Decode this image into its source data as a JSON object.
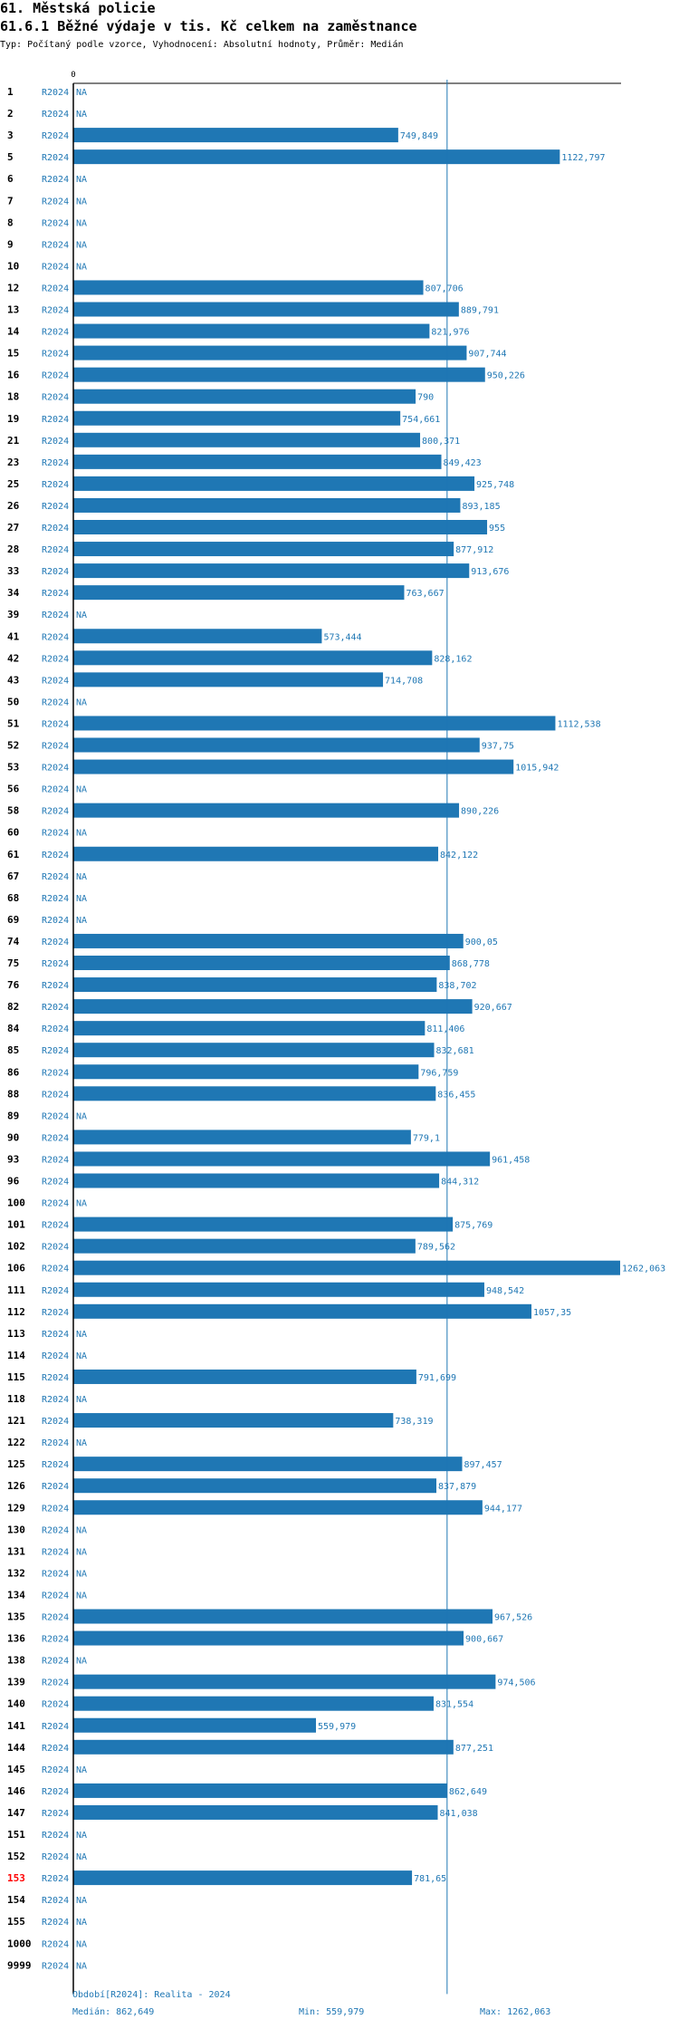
{
  "header": {
    "title": "61. Městská policie",
    "subtitle": "61.6.1 Běžné výdaje v tis. Kč celkem na zaměstnance",
    "meta": "Typ: Počítaný podle vzorce, Vyhodnocení: Absolutní hodnoty, Průměr: Medián"
  },
  "footer": {
    "period": "Období[R2024]: Realita - 2024",
    "median": "Medián: 862,649",
    "min": "Min: 559,979",
    "max": "Max: 1262,063"
  },
  "colors": {
    "bar": "#1f77b4",
    "label": "#1f77b4",
    "highlight": "#ff0000",
    "axis": "#000000"
  },
  "chart_data": {
    "type": "bar",
    "orientation": "horizontal",
    "axis_zero_label": "0",
    "xlim": [
      0,
      1262.063
    ],
    "median": 862.649,
    "series_label": "R2024",
    "rows": [
      {
        "id": "1",
        "value": null,
        "label": "NA"
      },
      {
        "id": "2",
        "value": null,
        "label": "NA"
      },
      {
        "id": "3",
        "value": 749.849,
        "label": "749,849"
      },
      {
        "id": "5",
        "value": 1122.797,
        "label": "1122,797"
      },
      {
        "id": "6",
        "value": null,
        "label": "NA"
      },
      {
        "id": "7",
        "value": null,
        "label": "NA"
      },
      {
        "id": "8",
        "value": null,
        "label": "NA"
      },
      {
        "id": "9",
        "value": null,
        "label": "NA"
      },
      {
        "id": "10",
        "value": null,
        "label": "NA"
      },
      {
        "id": "12",
        "value": 807.706,
        "label": "807,706"
      },
      {
        "id": "13",
        "value": 889.791,
        "label": "889,791"
      },
      {
        "id": "14",
        "value": 821.976,
        "label": "821,976"
      },
      {
        "id": "15",
        "value": 907.744,
        "label": "907,744"
      },
      {
        "id": "16",
        "value": 950.226,
        "label": "950,226"
      },
      {
        "id": "18",
        "value": 790,
        "label": "790"
      },
      {
        "id": "19",
        "value": 754.661,
        "label": "754,661"
      },
      {
        "id": "21",
        "value": 800.371,
        "label": "800,371"
      },
      {
        "id": "23",
        "value": 849.423,
        "label": "849,423"
      },
      {
        "id": "25",
        "value": 925.748,
        "label": "925,748"
      },
      {
        "id": "26",
        "value": 893.185,
        "label": "893,185"
      },
      {
        "id": "27",
        "value": 955,
        "label": "955"
      },
      {
        "id": "28",
        "value": 877.912,
        "label": "877,912"
      },
      {
        "id": "33",
        "value": 913.676,
        "label": "913,676"
      },
      {
        "id": "34",
        "value": 763.667,
        "label": "763,667"
      },
      {
        "id": "39",
        "value": null,
        "label": "NA"
      },
      {
        "id": "41",
        "value": 573.444,
        "label": "573,444"
      },
      {
        "id": "42",
        "value": 828.162,
        "label": "828,162"
      },
      {
        "id": "43",
        "value": 714.708,
        "label": "714,708"
      },
      {
        "id": "50",
        "value": null,
        "label": "NA"
      },
      {
        "id": "51",
        "value": 1112.538,
        "label": "1112,538"
      },
      {
        "id": "52",
        "value": 937.75,
        "label": "937,75"
      },
      {
        "id": "53",
        "value": 1015.942,
        "label": "1015,942"
      },
      {
        "id": "56",
        "value": null,
        "label": "NA"
      },
      {
        "id": "58",
        "value": 890.226,
        "label": "890,226"
      },
      {
        "id": "60",
        "value": null,
        "label": "NA"
      },
      {
        "id": "61",
        "value": 842.122,
        "label": "842,122"
      },
      {
        "id": "67",
        "value": null,
        "label": "NA"
      },
      {
        "id": "68",
        "value": null,
        "label": "NA"
      },
      {
        "id": "69",
        "value": null,
        "label": "NA"
      },
      {
        "id": "74",
        "value": 900.05,
        "label": "900,05"
      },
      {
        "id": "75",
        "value": 868.778,
        "label": "868,778"
      },
      {
        "id": "76",
        "value": 838.702,
        "label": "838,702"
      },
      {
        "id": "82",
        "value": 920.667,
        "label": "920,667"
      },
      {
        "id": "84",
        "value": 811.406,
        "label": "811,406"
      },
      {
        "id": "85",
        "value": 832.681,
        "label": "832,681"
      },
      {
        "id": "86",
        "value": 796.759,
        "label": "796,759"
      },
      {
        "id": "88",
        "value": 836.455,
        "label": "836,455"
      },
      {
        "id": "89",
        "value": null,
        "label": "NA"
      },
      {
        "id": "90",
        "value": 779.1,
        "label": "779,1"
      },
      {
        "id": "93",
        "value": 961.458,
        "label": "961,458"
      },
      {
        "id": "96",
        "value": 844.312,
        "label": "844,312"
      },
      {
        "id": "100",
        "value": null,
        "label": "NA"
      },
      {
        "id": "101",
        "value": 875.769,
        "label": "875,769"
      },
      {
        "id": "102",
        "value": 789.562,
        "label": "789,562"
      },
      {
        "id": "106",
        "value": 1262.063,
        "label": "1262,063"
      },
      {
        "id": "111",
        "value": 948.542,
        "label": "948,542"
      },
      {
        "id": "112",
        "value": 1057.35,
        "label": "1057,35"
      },
      {
        "id": "113",
        "value": null,
        "label": "NA"
      },
      {
        "id": "114",
        "value": null,
        "label": "NA"
      },
      {
        "id": "115",
        "value": 791.699,
        "label": "791,699"
      },
      {
        "id": "118",
        "value": null,
        "label": "NA"
      },
      {
        "id": "121",
        "value": 738.319,
        "label": "738,319"
      },
      {
        "id": "122",
        "value": null,
        "label": "NA"
      },
      {
        "id": "125",
        "value": 897.457,
        "label": "897,457"
      },
      {
        "id": "126",
        "value": 837.879,
        "label": "837,879"
      },
      {
        "id": "129",
        "value": 944.177,
        "label": "944,177"
      },
      {
        "id": "130",
        "value": null,
        "label": "NA"
      },
      {
        "id": "131",
        "value": null,
        "label": "NA"
      },
      {
        "id": "132",
        "value": null,
        "label": "NA"
      },
      {
        "id": "134",
        "value": null,
        "label": "NA"
      },
      {
        "id": "135",
        "value": 967.526,
        "label": "967,526"
      },
      {
        "id": "136",
        "value": 900.667,
        "label": "900,667"
      },
      {
        "id": "138",
        "value": null,
        "label": "NA"
      },
      {
        "id": "139",
        "value": 974.506,
        "label": "974,506"
      },
      {
        "id": "140",
        "value": 831.554,
        "label": "831,554"
      },
      {
        "id": "141",
        "value": 559.979,
        "label": "559,979"
      },
      {
        "id": "144",
        "value": 877.251,
        "label": "877,251"
      },
      {
        "id": "145",
        "value": null,
        "label": "NA"
      },
      {
        "id": "146",
        "value": 862.649,
        "label": "862,649"
      },
      {
        "id": "147",
        "value": 841.038,
        "label": "841,038"
      },
      {
        "id": "151",
        "value": null,
        "label": "NA"
      },
      {
        "id": "152",
        "value": null,
        "label": "NA"
      },
      {
        "id": "153",
        "value": 781.65,
        "label": "781,65",
        "highlight": true
      },
      {
        "id": "154",
        "value": null,
        "label": "NA"
      },
      {
        "id": "155",
        "value": null,
        "label": "NA"
      },
      {
        "id": "1000",
        "value": null,
        "label": "NA"
      },
      {
        "id": "9999",
        "value": null,
        "label": "NA"
      }
    ]
  }
}
